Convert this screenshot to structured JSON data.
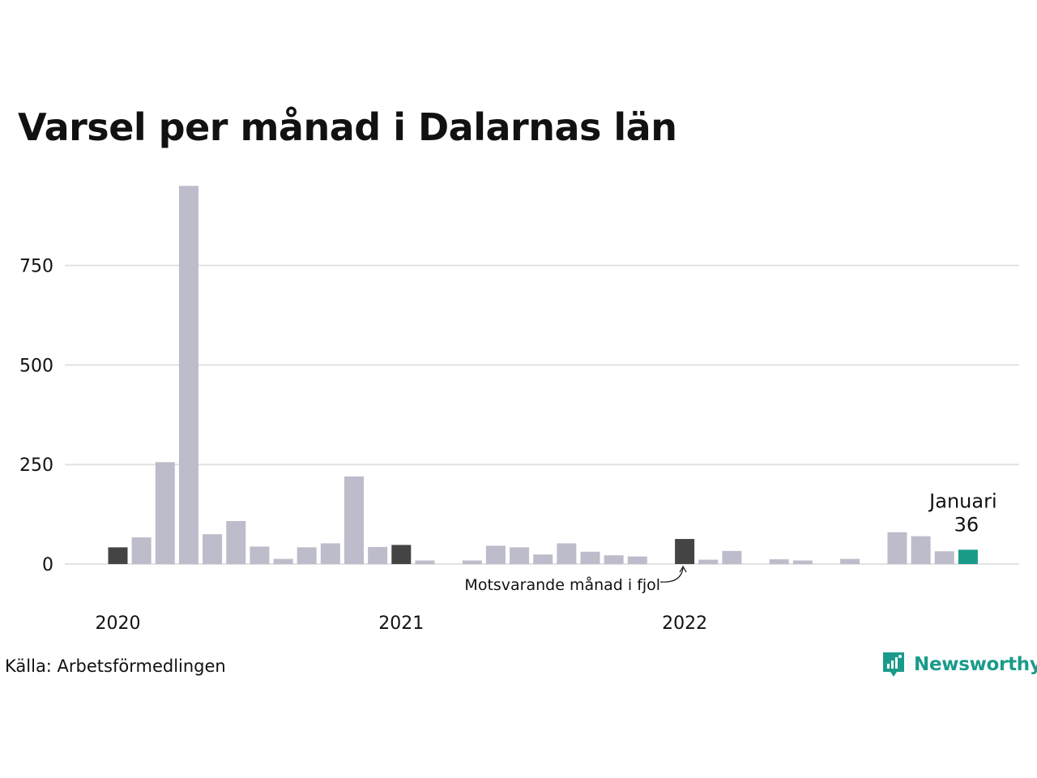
{
  "title": "Varsel per månad i Dalarnas län",
  "source": "Källa: Arbetsförmedlingen",
  "logo_text": "Newsworthy",
  "colors": {
    "normal": "#bdbccb",
    "same_month": "#444444",
    "current": "#1a9b8a",
    "grid": "#e2e2e2",
    "brand": "#1a9b8a"
  },
  "chart_data": {
    "type": "bar",
    "title": "Varsel per månad i Dalarnas län",
    "ylim": [
      0,
      950
    ],
    "yticks": [
      0,
      250,
      500,
      750
    ],
    "grid": true,
    "x_tick_labels": [
      {
        "label": "2020",
        "index": 0
      },
      {
        "label": "2021",
        "index": 12
      },
      {
        "label": "2022",
        "index": 24
      }
    ],
    "categories": [
      "2020-01",
      "2020-02",
      "2020-03",
      "2020-04",
      "2020-05",
      "2020-06",
      "2020-07",
      "2020-08",
      "2020-09",
      "2020-10",
      "2020-11",
      "2020-12",
      "2021-01",
      "2021-02",
      "2021-03",
      "2021-04",
      "2021-05",
      "2021-06",
      "2021-07",
      "2021-08",
      "2021-09",
      "2021-10",
      "2021-11",
      "2021-12",
      "2022-01",
      "2022-02",
      "2022-03",
      "2022-04",
      "2022-05",
      "2022-06",
      "2022-07",
      "2022-08",
      "2022-09",
      "2022-10",
      "2022-11",
      "2022-12",
      "2023-01"
    ],
    "values": [
      42,
      67,
      256,
      950,
      75,
      108,
      44,
      13,
      42,
      52,
      220,
      43,
      48,
      9,
      0,
      9,
      46,
      42,
      24,
      52,
      31,
      22,
      19,
      0,
      63,
      11,
      33,
      0,
      12,
      9,
      0,
      13,
      0,
      80,
      70,
      32,
      36
    ],
    "highlight_same_month": [
      0,
      12,
      24
    ],
    "current_index": 36,
    "annotations": [
      {
        "text": "Januari",
        "index": 36
      },
      {
        "text": "36",
        "index": 36
      },
      {
        "text": "Motsvarande månad i fjol",
        "index": 24
      }
    ]
  }
}
